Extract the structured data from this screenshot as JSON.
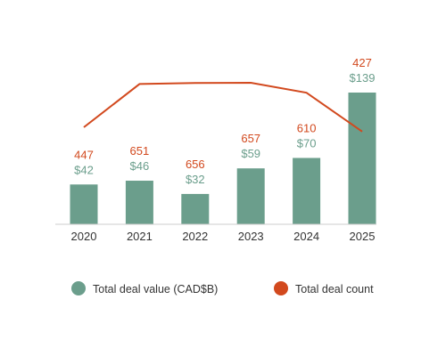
{
  "colors": {
    "value_series": "#6b9e8c",
    "count_series": "#d2491e",
    "axis_text": "#333333",
    "baseline": "#cccccc"
  },
  "chart_data": {
    "type": "bar",
    "categories": [
      "2020",
      "2021",
      "2022",
      "2023",
      "2024",
      "2025"
    ],
    "series": [
      {
        "name": "Total deal value (CAD$B)",
        "type": "bar",
        "values": [
          42,
          46,
          32,
          59,
          70,
          139
        ],
        "labels": [
          "$42",
          "$46",
          "$32",
          "$59",
          "$70",
          "$139"
        ]
      },
      {
        "name": "Total deal count",
        "type": "line",
        "values": [
          447,
          651,
          656,
          657,
          610,
          427
        ],
        "labels": [
          "447",
          "651",
          "656",
          "657",
          "610",
          "427"
        ]
      }
    ],
    "legend": "bottom",
    "grid": false
  }
}
